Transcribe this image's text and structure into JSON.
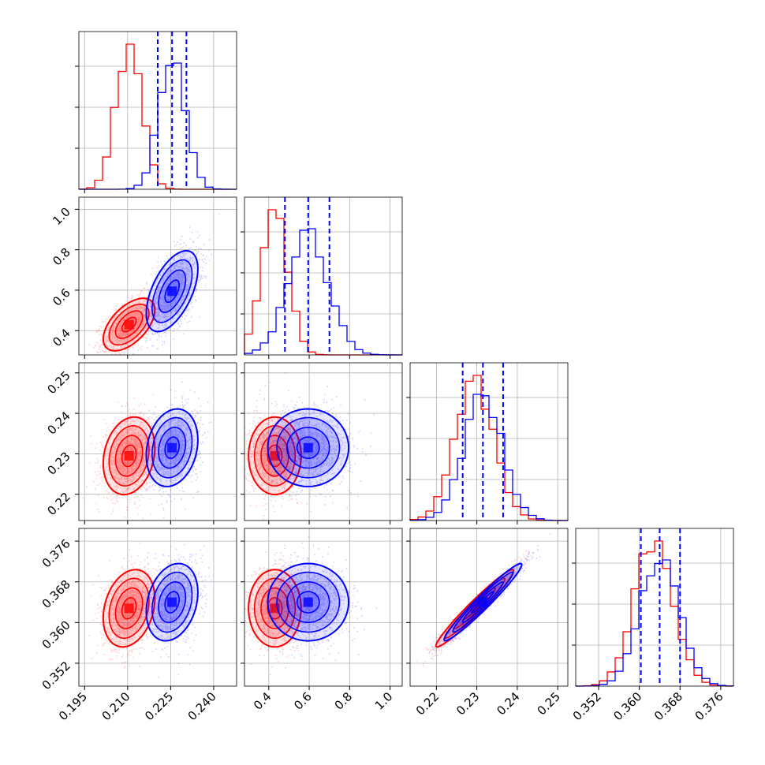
{
  "chart_data": {
    "type": "corner",
    "colors": {
      "red": "#ff0000",
      "blue": "#0000ff"
    },
    "grid": true,
    "params": [
      {
        "range": [
          0.193,
          0.248
        ],
        "ticks": [
          0.195,
          0.21,
          0.225,
          0.24
        ],
        "tick_labels": [
          "0.195",
          "0.210",
          "0.225",
          "0.240"
        ]
      },
      {
        "range": [
          0.28,
          1.06
        ],
        "ticks": [
          0.4,
          0.6,
          0.8,
          1.0
        ],
        "tick_labels": [
          "0.4",
          "0.6",
          "0.8",
          "1.0"
        ]
      },
      {
        "range": [
          0.2135,
          0.2525
        ],
        "ticks": [
          0.22,
          0.23,
          0.24,
          0.25
        ],
        "tick_labels": [
          "0.22",
          "0.23",
          "0.24",
          "0.25"
        ]
      },
      {
        "range": [
          0.3475,
          0.3785
        ],
        "ticks": [
          0.352,
          0.36,
          0.368,
          0.376
        ],
        "tick_labels": [
          "0.352",
          "0.360",
          "0.368",
          "0.376"
        ]
      }
    ],
    "series": [
      {
        "color": "red",
        "means": [
          0.2105,
          0.43,
          0.2295,
          0.3628
        ],
        "sds": [
          0.0045,
          0.065,
          0.0048,
          0.0038
        ]
      },
      {
        "color": "blue",
        "means": [
          0.2255,
          0.595,
          0.2315,
          0.364
        ],
        "sds": [
          0.0045,
          0.1,
          0.0048,
          0.0038
        ]
      }
    ],
    "quantiles_blue": [
      [
        0.2205,
        0.2255,
        0.2305
      ],
      [
        0.48,
        0.595,
        0.7
      ],
      [
        0.2265,
        0.2315,
        0.2365
      ],
      [
        0.3603,
        0.364,
        0.368
      ]
    ],
    "correlations": {
      "0-1": [
        0.55,
        0.55
      ],
      "0-2": [
        0.2,
        0.2
      ],
      "0-3": [
        0.25,
        0.25
      ],
      "1-2": [
        0.0,
        0.0
      ],
      "1-3": [
        0.0,
        0.0
      ],
      "2-3": [
        0.97,
        0.97
      ]
    }
  }
}
